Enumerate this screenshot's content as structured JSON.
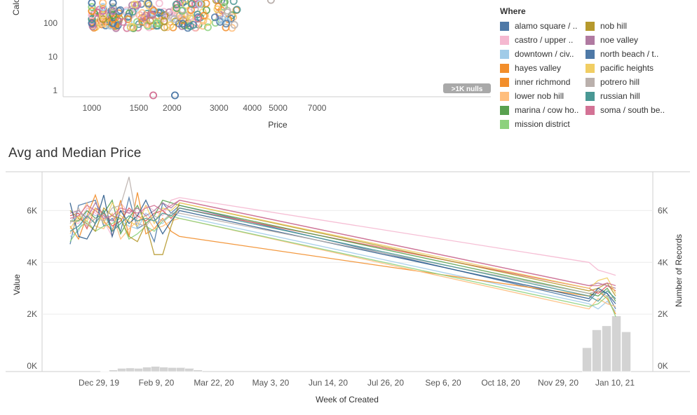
{
  "chart_data": [
    {
      "type": "scatter",
      "title": "",
      "xlabel": "Price",
      "ylabel": "Calo",
      "x_scale": "log",
      "y_scale": "log",
      "x_ticks": [
        "1000",
        "1500",
        "2000",
        "3000",
        "4000",
        "5000",
        "7000"
      ],
      "y_ticks": [
        "100",
        "10",
        "1"
      ],
      "null_badge": ">1K nulls",
      "legend_title": "Where",
      "legend_position": "right",
      "legend": [
        {
          "label": "alamo square / ..",
          "color": "#4e79a7"
        },
        {
          "label": "castro / upper ..",
          "color": "#f5b8d0"
        },
        {
          "label": "downtown / civ..",
          "color": "#a0cbe8"
        },
        {
          "label": "hayes valley",
          "color": "#f28e2b"
        },
        {
          "label": "inner richmond",
          "color": "#f28e2b"
        },
        {
          "label": "lower nob hill",
          "color": "#ffbe7d"
        },
        {
          "label": "marina / cow ho..",
          "color": "#59a14f"
        },
        {
          "label": "mission district",
          "color": "#8cd17d"
        },
        {
          "label": "nob hill",
          "color": "#b6992d"
        },
        {
          "label": "noe valley",
          "color": "#b07aa1"
        },
        {
          "label": "north beach / t..",
          "color": "#4e79a7"
        },
        {
          "label": "pacific heights",
          "color": "#f1ce63"
        },
        {
          "label": "potrero hill",
          "color": "#bab0ac"
        },
        {
          "label": "russian hill",
          "color": "#499894"
        },
        {
          "label": "soma / south be..",
          "color": "#d37295"
        }
      ],
      "outliers": [
        {
          "x": 1700,
          "y": 1,
          "color": "#d37295"
        },
        {
          "x": 2050,
          "y": 1,
          "color": "#4e79a7"
        }
      ]
    },
    {
      "type": "line",
      "title": "Avg and Median Price",
      "xlabel": "Week of Created",
      "ylabel": "Value",
      "ylabel_right": "Number of Records",
      "y_ticks": [
        "0K",
        "2K",
        "4K",
        "6K"
      ],
      "y_ticks_right": [
        "0K",
        "2K",
        "4K",
        "6K"
      ],
      "ylim": [
        0,
        7500
      ],
      "x_ticks": [
        "Dec 29, 19",
        "Feb 9, 20",
        "Mar 22, 20",
        "May 3, 20",
        "Jun 14, 20",
        "Jul 26, 20",
        "Sep 6, 20",
        "Oct 18, 20",
        "Nov 29, 20",
        "Jan 10, 21"
      ],
      "grid": true,
      "series": [
        {
          "color": "#4e79a7",
          "values": [
            4700,
            6200,
            6300,
            6400,
            5400,
            5700,
            5200,
            6500,
            5300,
            5500,
            4800,
            6300,
            5900,
            6200,
            2500,
            2900,
            2800,
            2200
          ]
        },
        {
          "color": "#f5b8d0",
          "values": [
            5600,
            5500,
            6100,
            5900,
            5600,
            5000,
            6300,
            5900,
            5700,
            6200,
            6000,
            5800,
            6400,
            6500,
            4000,
            3700,
            3600,
            3500
          ]
        },
        {
          "color": "#a0cbe8",
          "values": [
            5000,
            5200,
            6000,
            5800,
            5800,
            5300,
            5600,
            5400,
            5300,
            5900,
            5600,
            5500,
            5900,
            5800,
            2400,
            2200,
            2500,
            2100
          ]
        },
        {
          "color": "#f28e2b",
          "values": [
            5400,
            4900,
            5800,
            6600,
            5600,
            5200,
            6400,
            5000,
            6700,
            5100,
            5300,
            5700,
            5200,
            5000,
            2700,
            2900,
            2600,
            2000
          ]
        },
        {
          "color": "#e15759",
          "values": [
            5800,
            5900,
            5300,
            6100,
            5900,
            5400,
            5600,
            6100,
            5800,
            5600,
            5900,
            6000,
            5700,
            6100,
            3000,
            2800,
            3100,
            2900
          ]
        },
        {
          "color": "#ffbe7d",
          "values": [
            5100,
            5700,
            6300,
            5400,
            5300,
            5900,
            4900,
            5300,
            5600,
            5800,
            5300,
            5400,
            5600,
            5700,
            2200,
            2600,
            2400,
            2300
          ]
        },
        {
          "color": "#59a14f",
          "values": [
            5600,
            5600,
            6000,
            5700,
            5900,
            6400,
            5100,
            5700,
            6200,
            5500,
            5800,
            6400,
            6300,
            6200,
            2800,
            2700,
            3000,
            2500
          ]
        },
        {
          "color": "#8cd17d",
          "values": [
            4800,
            5300,
            5600,
            5200,
            5400,
            5500,
            5700,
            4900,
            5100,
            5400,
            5200,
            5600,
            5800,
            5700,
            2300,
            2400,
            2700,
            1900
          ]
        },
        {
          "color": "#b6992d",
          "values": [
            6000,
            5700,
            5500,
            5200,
            6100,
            5800,
            5700,
            5000,
            4800,
            5500,
            4300,
            4300,
            5400,
            6300,
            2900,
            3000,
            3200,
            2700
          ]
        },
        {
          "color": "#b07aa1",
          "values": [
            5900,
            6000,
            5700,
            6300,
            5800,
            5600,
            6000,
            5900,
            6100,
            5800,
            6000,
            6300,
            6100,
            6400,
            3100,
            3200,
            3100,
            3000
          ]
        },
        {
          "color": "#2f5d8c",
          "values": [
            6300,
            5000,
            4900,
            5500,
            6600,
            5000,
            6000,
            5500,
            5800,
            6400,
            5700,
            5100,
            5600,
            6000,
            2600,
            3000,
            2800,
            2400
          ]
        },
        {
          "color": "#f1ce63",
          "values": [
            5300,
            5800,
            5600,
            6100,
            5500,
            6300,
            5800,
            5600,
            5400,
            6200,
            5500,
            6100,
            6000,
            6300,
            3000,
            3300,
            3400,
            2800
          ]
        },
        {
          "color": "#bab0ac",
          "values": [
            5500,
            6100,
            5400,
            5700,
            5600,
            6100,
            6200,
            7300,
            5500,
            5400,
            5800,
            5600,
            5900,
            5900,
            2800,
            2900,
            2700,
            2600
          ]
        },
        {
          "color": "#499894",
          "values": [
            5200,
            5400,
            5800,
            5500,
            6000,
            5200,
            5500,
            5800,
            5600,
            5700,
            5600,
            5900,
            5800,
            6100,
            2700,
            2500,
            2900,
            2600
          ]
        },
        {
          "color": "#d37295",
          "values": [
            5700,
            5800,
            6200,
            6000,
            5700,
            5800,
            6100,
            6000,
            5900,
            6100,
            6200,
            6000,
            6200,
            6400,
            3100,
            3100,
            3200,
            3100
          ]
        }
      ],
      "record_bars": {
        "color": "#d3d3d3",
        "values": [
          5,
          40,
          80,
          90,
          80,
          110,
          130,
          110,
          100,
          100,
          80,
          40,
          600,
          1050,
          1150,
          1400,
          1000
        ]
      }
    }
  ]
}
